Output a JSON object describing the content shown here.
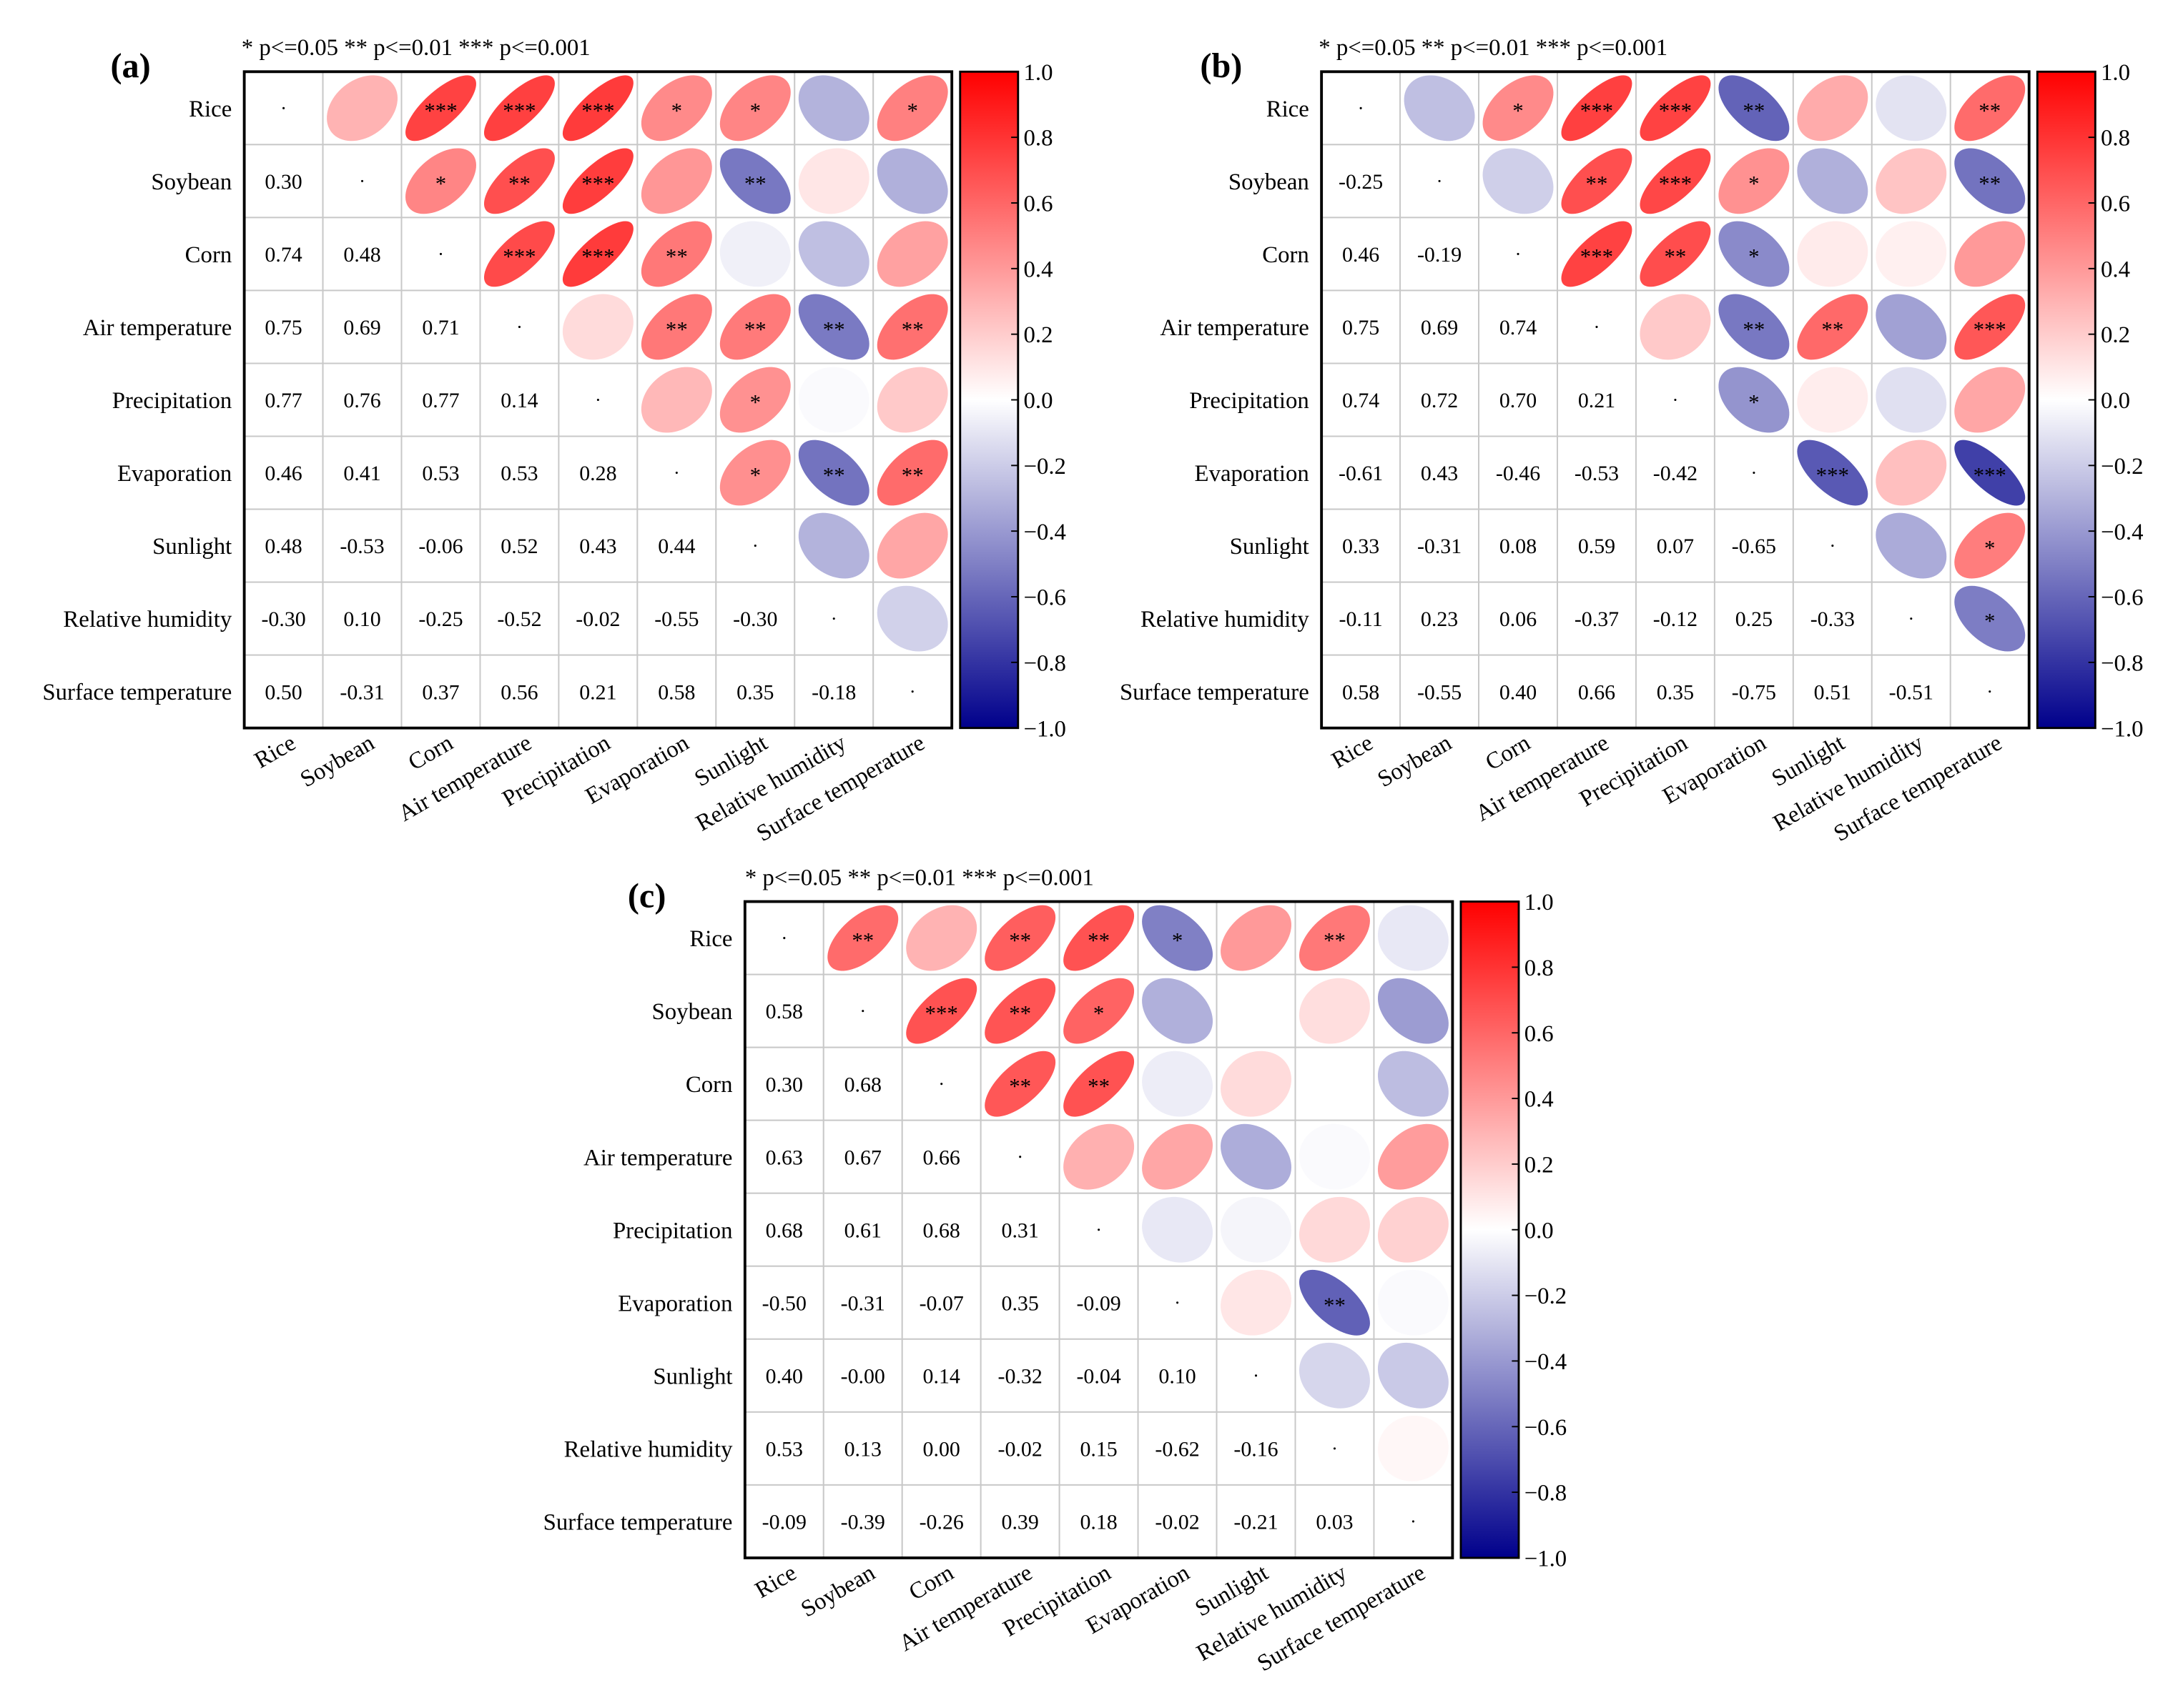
{
  "chart_data": [
    {
      "type": "heatmap",
      "panel_label": "(a)",
      "significance_legend": "* p<=0.05  ** p<=0.01  *** p<=0.001",
      "variables": [
        "Rice",
        "Soybean",
        "Corn",
        "Air temperature",
        "Precipitation",
        "Evaporation",
        "Sunlight",
        "Relative humidity",
        "Surface temperature"
      ],
      "lower_values": [
        [],
        [
          "0.30"
        ],
        [
          "0.74",
          "0.48"
        ],
        [
          "0.75",
          "0.69",
          "0.71"
        ],
        [
          "0.77",
          "0.76",
          "0.77",
          "0.14"
        ],
        [
          "0.46",
          "0.41",
          "0.53",
          "0.53",
          "0.28"
        ],
        [
          "0.48",
          "-0.53",
          "-0.06",
          "0.52",
          "0.43",
          "0.44"
        ],
        [
          "-0.30",
          "0.10",
          "-0.25",
          "-0.52",
          "-0.02",
          "-0.55",
          "-0.30"
        ],
        [
          "0.50",
          "-0.31",
          "0.37",
          "0.56",
          "0.21",
          "0.58",
          "0.35",
          "-0.18"
        ]
      ],
      "upper_stars": [
        [
          "",
          "***",
          "***",
          "***",
          "*",
          "*",
          "",
          "*"
        ],
        [
          "*",
          "**",
          "***",
          "",
          "**",
          "",
          ""
        ],
        [
          "***",
          "***",
          "**",
          "",
          "",
          ""
        ],
        [
          "",
          "**",
          "**",
          "**",
          "**"
        ],
        [
          "",
          "*",
          "",
          ""
        ],
        [
          "*",
          "**",
          "**"
        ],
        [
          "",
          ""
        ],
        [
          ""
        ]
      ],
      "colorbar": {
        "range": [
          -1.0,
          1.0
        ],
        "ticks": [
          "1.0",
          "0.8",
          "0.6",
          "0.4",
          "0.2",
          "0.0",
          "−0.2",
          "−0.4",
          "−0.6",
          "−0.8",
          "−1.0"
        ],
        "positive_color": "#ff0000",
        "zero_color": "#ffffff",
        "negative_color": "#00008b"
      }
    },
    {
      "type": "heatmap",
      "panel_label": "(b)",
      "significance_legend": "* p<=0.05  ** p<=0.01  *** p<=0.001",
      "variables": [
        "Rice",
        "Soybean",
        "Corn",
        "Air temperature",
        "Precipitation",
        "Evaporation",
        "Sunlight",
        "Relative humidity",
        "Surface temperature"
      ],
      "lower_values": [
        [],
        [
          "-0.25"
        ],
        [
          "0.46",
          "-0.19"
        ],
        [
          "0.75",
          "0.69",
          "0.74"
        ],
        [
          "0.74",
          "0.72",
          "0.70",
          "0.21"
        ],
        [
          "-0.61",
          "0.43",
          "-0.46",
          "-0.53",
          "-0.42"
        ],
        [
          "0.33",
          "-0.31",
          "0.08",
          "0.59",
          "0.07",
          "-0.65"
        ],
        [
          "-0.11",
          "0.23",
          "0.06",
          "-0.37",
          "-0.12",
          "0.25",
          "-0.33"
        ],
        [
          "0.58",
          "-0.55",
          "0.40",
          "0.66",
          "0.35",
          "-0.75",
          "0.51",
          "-0.51"
        ]
      ],
      "upper_stars": [
        [
          "",
          "*",
          "***",
          "***",
          "**",
          "",
          "",
          "**"
        ],
        [
          "",
          "**",
          "***",
          "*",
          "",
          "",
          "**"
        ],
        [
          "***",
          "**",
          "*",
          "",
          "",
          ""
        ],
        [
          "",
          "**",
          "**",
          "",
          "***"
        ],
        [
          "*",
          "",
          "",
          ""
        ],
        [
          "***",
          "",
          "***"
        ],
        [
          "",
          "*"
        ],
        [
          "*"
        ]
      ],
      "colorbar": {
        "range": [
          -1.0,
          1.0
        ],
        "ticks": [
          "1.0",
          "0.8",
          "0.6",
          "0.4",
          "0.2",
          "0.0",
          "−0.2",
          "−0.4",
          "−0.6",
          "−0.8",
          "−1.0"
        ],
        "positive_color": "#ff0000",
        "zero_color": "#ffffff",
        "negative_color": "#00008b"
      }
    },
    {
      "type": "heatmap",
      "panel_label": "(c)",
      "significance_legend": "* p<=0.05  ** p<=0.01  *** p<=0.001",
      "variables": [
        "Rice",
        "Soybean",
        "Corn",
        "Air temperature",
        "Precipitation",
        "Evaporation",
        "Sunlight",
        "Relative humidity",
        "Surface temperature"
      ],
      "lower_values": [
        [],
        [
          "0.58"
        ],
        [
          "0.30",
          "0.68"
        ],
        [
          "0.63",
          "0.67",
          "0.66"
        ],
        [
          "0.68",
          "0.61",
          "0.68",
          "0.31"
        ],
        [
          "-0.50",
          "-0.31",
          "-0.07",
          "0.35",
          "-0.09"
        ],
        [
          "0.40",
          "-0.00",
          "0.14",
          "-0.32",
          "-0.04",
          "0.10"
        ],
        [
          "0.53",
          "0.13",
          "0.00",
          "-0.02",
          "0.15",
          "-0.62",
          "-0.16"
        ],
        [
          "-0.09",
          "-0.39",
          "-0.26",
          "0.39",
          "0.18",
          "-0.02",
          "-0.21",
          "0.03"
        ]
      ],
      "upper_stars": [
        [
          "**",
          "",
          "**",
          "**",
          "*",
          "",
          "**",
          ""
        ],
        [
          "***",
          "**",
          "*",
          "",
          "",
          "",
          ""
        ],
        [
          "**",
          "**",
          "",
          "",
          "",
          ""
        ],
        [
          "",
          "",
          "",
          "",
          ""
        ],
        [
          "",
          "",
          "",
          ""
        ],
        [
          "",
          "**",
          ""
        ],
        [
          "",
          ""
        ],
        [
          ""
        ]
      ],
      "colorbar": {
        "range": [
          -1.0,
          1.0
        ],
        "ticks": [
          "1.0",
          "0.8",
          "0.6",
          "0.4",
          "0.2",
          "0.0",
          "−0.2",
          "−0.4",
          "−0.6",
          "−0.8",
          "−1.0"
        ],
        "positive_color": "#ff0000",
        "zero_color": "#ffffff",
        "negative_color": "#00008b"
      }
    }
  ]
}
